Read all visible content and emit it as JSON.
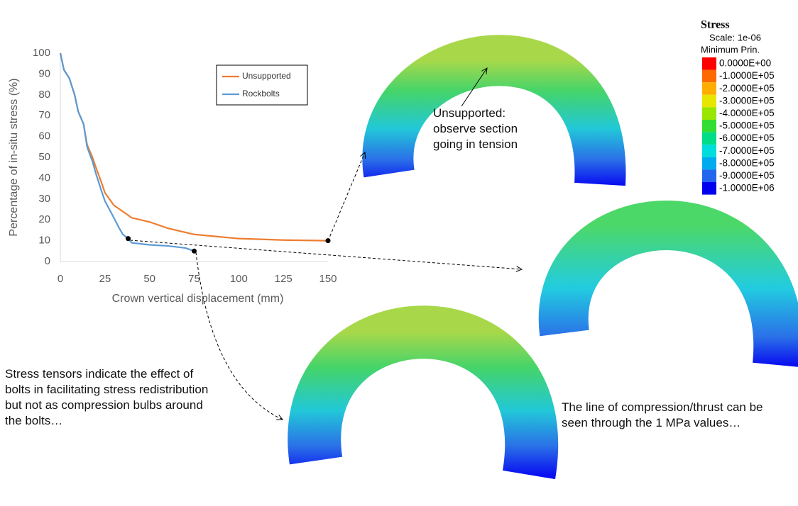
{
  "chart_data": {
    "type": "line",
    "ylabel": "Percentage of in-situ stress (%)",
    "xlabel": "Crown vertical displacement (mm)",
    "xlim": [
      0,
      150
    ],
    "xticks": [
      0,
      25,
      50,
      75,
      100,
      125,
      150
    ],
    "ylim": [
      0,
      100
    ],
    "yticks": [
      0,
      10,
      20,
      30,
      40,
      50,
      60,
      70,
      80,
      90,
      100
    ],
    "grid": false,
    "legend": "top-right",
    "series": [
      {
        "name": "Unsupported",
        "color": "#ed7d31",
        "x": [
          0,
          2,
          5,
          8,
          10,
          13,
          15,
          18,
          20,
          23,
          25,
          30,
          40,
          50,
          60,
          75,
          100,
          125,
          150
        ],
        "values": [
          100,
          92,
          88,
          80,
          72,
          66,
          56,
          50,
          45,
          38,
          33,
          27,
          21,
          19,
          16,
          13,
          11,
          10.3,
          10
        ]
      },
      {
        "name": "Rockbolts",
        "color": "#5b9bd5",
        "x": [
          0,
          2,
          5,
          8,
          10,
          13,
          15,
          18,
          20,
          23,
          25,
          30,
          33,
          35,
          38,
          40,
          50,
          60,
          70,
          75
        ],
        "values": [
          100,
          92,
          88,
          80,
          72,
          66,
          55,
          48,
          42,
          34,
          29,
          21,
          16,
          13,
          11,
          9,
          8,
          7.5,
          6.5,
          5
        ]
      }
    ]
  },
  "stress_legend": {
    "title": "Stress",
    "lines": [
      "Scale: 1e-06",
      "Minimum Prin."
    ],
    "entries": [
      {
        "label": "0.0000E+00",
        "color": "#ff0000"
      },
      {
        "label": "-1.0000E+05",
        "color": "#ff6a00"
      },
      {
        "label": "-2.0000E+05",
        "color": "#ffae00"
      },
      {
        "label": "-3.0000E+05",
        "color": "#e6e600"
      },
      {
        "label": "-4.0000E+05",
        "color": "#99e600"
      },
      {
        "label": "-5.0000E+05",
        "color": "#33dd33"
      },
      {
        "label": "-6.0000E+05",
        "color": "#00dd88"
      },
      {
        "label": "-7.0000E+05",
        "color": "#00dddd"
      },
      {
        "label": "-8.0000E+05",
        "color": "#00aaee"
      },
      {
        "label": "-9.0000E+05",
        "color": "#2266ee"
      },
      {
        "label": "-1.0000E+06",
        "color": "#0000ee"
      }
    ]
  },
  "annotations": {
    "unsupported": [
      "Unsupported:",
      "observe section",
      "going in tension"
    ],
    "bolts": [
      "Stress tensors indicate the effect of",
      "bolts in facilitating stress redistribution",
      "but not as compression bulbs around",
      "the bolts…"
    ],
    "thrust": [
      "The line of compression/thrust can be",
      "seen through the 1 MPa values…"
    ]
  }
}
